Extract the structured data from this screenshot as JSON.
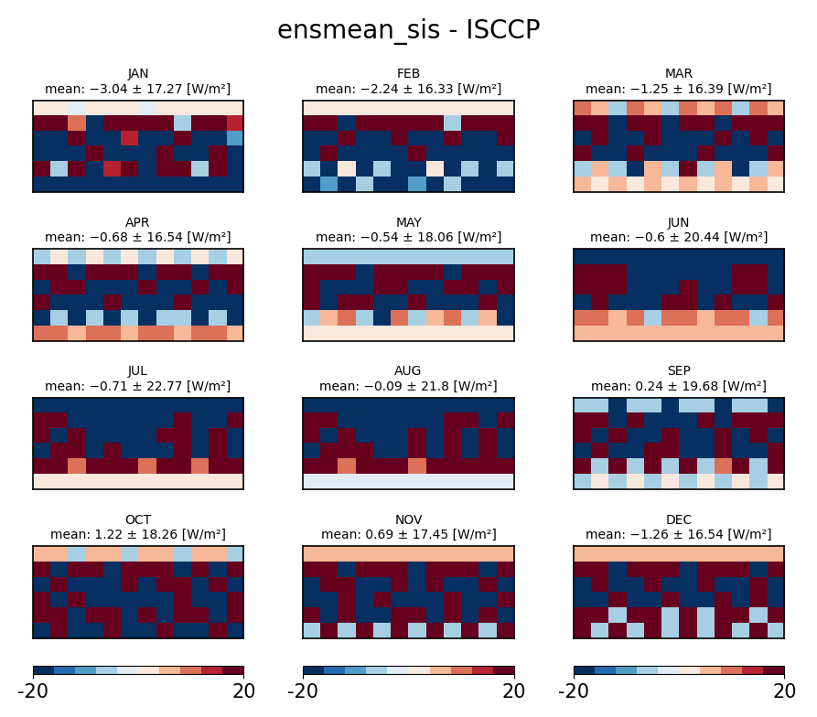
{
  "title": "ensmean_sis - ISCCP",
  "colorbar": {
    "range": [
      -20,
      20
    ],
    "ticks": [
      -20,
      20
    ],
    "bounds": [
      -20,
      -16,
      -12,
      -8,
      -4,
      0,
      4,
      8,
      12,
      16,
      20
    ]
  },
  "chart_data": [
    {
      "type": "heatmap",
      "title": "JAN",
      "subtitle": "mean: −3.04 ± 17.27 [W/m²]",
      "tick_labels": false,
      "cells": [
        [
          2,
          2,
          -2,
          2,
          2,
          2,
          -2,
          2,
          2,
          2,
          2,
          2
        ],
        [
          18,
          18,
          10,
          -18,
          18,
          18,
          18,
          18,
          -6,
          18,
          18,
          14
        ],
        [
          -18,
          -18,
          18,
          -18,
          -18,
          14,
          -18,
          -18,
          18,
          -18,
          -18,
          -10
        ],
        [
          -18,
          -18,
          -18,
          18,
          -18,
          -18,
          -18,
          18,
          -18,
          -18,
          18,
          -18
        ],
        [
          18,
          -6,
          18,
          -18,
          14,
          18,
          -18,
          18,
          18,
          -6,
          18,
          -18
        ],
        [
          -18,
          -18,
          -18,
          -18,
          -18,
          -18,
          -18,
          -18,
          -18,
          -18,
          -18,
          -18
        ]
      ]
    },
    {
      "type": "heatmap",
      "title": "FEB",
      "subtitle": "mean: −2.24 ± 16.33 [W/m²]",
      "tick_labels": false,
      "cells": [
        [
          2,
          2,
          2,
          2,
          2,
          2,
          2,
          2,
          2,
          2,
          2,
          2
        ],
        [
          18,
          18,
          -18,
          18,
          18,
          18,
          18,
          18,
          -6,
          18,
          18,
          18
        ],
        [
          -18,
          -18,
          18,
          -18,
          -18,
          18,
          -18,
          -18,
          18,
          -18,
          -18,
          18
        ],
        [
          -18,
          18,
          -18,
          -18,
          -18,
          -18,
          18,
          -18,
          -18,
          -18,
          -18,
          -18
        ],
        [
          -6,
          -18,
          2,
          -18,
          -6,
          -18,
          -18,
          2,
          -18,
          -6,
          -18,
          -6
        ],
        [
          -18,
          -10,
          -18,
          -6,
          -18,
          -18,
          -10,
          -18,
          -6,
          -18,
          -18,
          -18
        ]
      ]
    },
    {
      "type": "heatmap",
      "title": "MAR",
      "subtitle": "mean: −1.25 ± 16.39 [W/m²]",
      "tick_labels": false,
      "cells": [
        [
          10,
          6,
          -6,
          10,
          6,
          -6,
          10,
          6,
          10,
          -6,
          10,
          6
        ],
        [
          18,
          18,
          -18,
          18,
          18,
          -18,
          18,
          18,
          -18,
          18,
          18,
          18
        ],
        [
          -18,
          18,
          -18,
          -18,
          18,
          -18,
          -18,
          -18,
          18,
          -18,
          18,
          -18
        ],
        [
          18,
          -18,
          -18,
          18,
          -18,
          -18,
          -18,
          18,
          -18,
          -18,
          -18,
          18
        ],
        [
          -6,
          6,
          -6,
          -18,
          6,
          -6,
          18,
          -6,
          6,
          -18,
          -6,
          6
        ],
        [
          6,
          2,
          6,
          2,
          6,
          2,
          6,
          2,
          6,
          2,
          6,
          2
        ]
      ]
    },
    {
      "type": "heatmap",
      "title": "APR",
      "subtitle": "mean: −0.68 ± 16.54 [W/m²]",
      "tick_labels": false,
      "cells": [
        [
          -6,
          2,
          -6,
          2,
          -6,
          2,
          -6,
          2,
          -6,
          2,
          -6,
          2
        ],
        [
          18,
          18,
          -18,
          18,
          18,
          18,
          -18,
          18,
          18,
          -18,
          18,
          18
        ],
        [
          -18,
          18,
          18,
          -18,
          -18,
          -18,
          18,
          -18,
          -18,
          18,
          -18,
          18
        ],
        [
          18,
          -18,
          -18,
          -18,
          18,
          -18,
          -18,
          -18,
          18,
          -18,
          -18,
          -18
        ],
        [
          -18,
          -6,
          -18,
          -6,
          -18,
          -6,
          -18,
          -6,
          -6,
          -18,
          -6,
          -18
        ],
        [
          10,
          10,
          6,
          10,
          10,
          6,
          10,
          10,
          6,
          10,
          10,
          6
        ]
      ]
    },
    {
      "type": "heatmap",
      "title": "MAY",
      "subtitle": "mean: −0.54 ± 18.06 [W/m²]",
      "tick_labels": false,
      "cells": [
        [
          -6,
          -6,
          -6,
          -6,
          -6,
          -6,
          -6,
          -6,
          -6,
          -6,
          -6,
          -6
        ],
        [
          18,
          18,
          18,
          -18,
          18,
          18,
          18,
          18,
          -18,
          18,
          18,
          18
        ],
        [
          18,
          -18,
          -18,
          -18,
          18,
          18,
          -18,
          -18,
          18,
          18,
          -18,
          18
        ],
        [
          18,
          -18,
          18,
          18,
          -18,
          -18,
          18,
          -18,
          -18,
          -18,
          18,
          -18
        ],
        [
          -6,
          6,
          10,
          -6,
          -18,
          10,
          -6,
          6,
          10,
          -6,
          6,
          -18
        ],
        [
          2,
          2,
          2,
          2,
          2,
          2,
          2,
          2,
          2,
          2,
          2,
          2
        ]
      ]
    },
    {
      "type": "heatmap",
      "title": "JUN",
      "subtitle": "mean: −0.6 ± 20.44 [W/m²]",
      "tick_labels": false,
      "cells": [
        [
          -18,
          -18,
          -18,
          -18,
          -18,
          -18,
          -18,
          -18,
          -18,
          -18,
          -18,
          -18
        ],
        [
          18,
          18,
          18,
          -18,
          -18,
          -18,
          -18,
          -18,
          -18,
          18,
          18,
          -18
        ],
        [
          18,
          18,
          18,
          -18,
          -18,
          -18,
          18,
          -18,
          -18,
          18,
          18,
          -18
        ],
        [
          -18,
          18,
          -18,
          -18,
          -18,
          18,
          18,
          -18,
          18,
          -18,
          -18,
          18
        ],
        [
          10,
          10,
          6,
          10,
          -6,
          10,
          10,
          6,
          10,
          10,
          -6,
          10
        ],
        [
          6,
          6,
          6,
          6,
          6,
          6,
          6,
          6,
          6,
          6,
          6,
          6
        ]
      ]
    },
    {
      "type": "heatmap",
      "title": "JUL",
      "subtitle": "mean: −0.71 ± 22.77 [W/m²]",
      "tick_labels": false,
      "cells": [
        [
          -18,
          -18,
          -18,
          -18,
          -18,
          -18,
          -18,
          -18,
          -18,
          -18,
          -18,
          -18
        ],
        [
          18,
          18,
          -18,
          -18,
          -18,
          -18,
          -18,
          -18,
          18,
          -18,
          -18,
          18
        ],
        [
          18,
          -18,
          18,
          -18,
          -18,
          -18,
          -18,
          18,
          18,
          -18,
          18,
          -18
        ],
        [
          -18,
          18,
          18,
          -18,
          18,
          -18,
          -18,
          -18,
          18,
          -18,
          18,
          -18
        ],
        [
          18,
          18,
          10,
          18,
          18,
          18,
          10,
          18,
          18,
          10,
          18,
          18
        ],
        [
          2,
          2,
          2,
          2,
          2,
          2,
          2,
          2,
          2,
          2,
          2,
          2
        ]
      ]
    },
    {
      "type": "heatmap",
      "title": "AUG",
      "subtitle": "mean: −0.09 ± 21.8 [W/m²]",
      "tick_labels": false,
      "cells": [
        [
          -18,
          -18,
          -18,
          -18,
          -18,
          -18,
          -18,
          -18,
          -18,
          -18,
          -18,
          -18
        ],
        [
          18,
          18,
          -18,
          -18,
          -18,
          -18,
          -18,
          -18,
          18,
          18,
          -18,
          18
        ],
        [
          18,
          -18,
          18,
          -18,
          -18,
          -18,
          18,
          -18,
          18,
          -18,
          18,
          -18
        ],
        [
          -18,
          18,
          18,
          18,
          -18,
          -18,
          18,
          -18,
          18,
          -18,
          18,
          -18
        ],
        [
          18,
          18,
          10,
          18,
          18,
          18,
          10,
          18,
          18,
          18,
          18,
          18
        ],
        [
          -2,
          -2,
          -2,
          -2,
          -2,
          -2,
          -2,
          -2,
          -2,
          -2,
          -2,
          -2
        ]
      ]
    },
    {
      "type": "heatmap",
      "title": "SEP",
      "subtitle": "mean: 0.24 ± 19.68 [W/m²]",
      "tick_labels": false,
      "cells": [
        [
          -6,
          -6,
          -18,
          -6,
          -6,
          -18,
          -6,
          -6,
          -18,
          -6,
          -6,
          -18
        ],
        [
          18,
          18,
          -18,
          18,
          -18,
          -18,
          -18,
          18,
          -18,
          18,
          18,
          18
        ],
        [
          18,
          -18,
          18,
          -18,
          -18,
          18,
          -18,
          -18,
          18,
          -18,
          18,
          -18
        ],
        [
          -18,
          18,
          -18,
          -18,
          18,
          18,
          -18,
          -18,
          18,
          -18,
          -18,
          18
        ],
        [
          18,
          -6,
          18,
          -6,
          18,
          -6,
          18,
          -6,
          10,
          18,
          -6,
          18
        ],
        [
          -6,
          2,
          -6,
          2,
          -6,
          2,
          -6,
          2,
          -6,
          2,
          -6,
          2
        ]
      ]
    },
    {
      "type": "heatmap",
      "title": "OCT",
      "subtitle": "mean: 1.22 ± 18.26 [W/m²]",
      "tick_labels": false,
      "cells": [
        [
          6,
          6,
          -6,
          6,
          6,
          -6,
          6,
          6,
          -6,
          6,
          6,
          -6
        ],
        [
          18,
          -18,
          18,
          18,
          -18,
          18,
          18,
          18,
          -18,
          18,
          -18,
          18
        ],
        [
          -18,
          18,
          -18,
          -18,
          -18,
          18,
          -18,
          18,
          18,
          -18,
          18,
          -18
        ],
        [
          18,
          -18,
          18,
          -18,
          -18,
          -18,
          -18,
          -18,
          18,
          -18,
          -18,
          18
        ],
        [
          18,
          18,
          -18,
          18,
          18,
          -18,
          18,
          -18,
          18,
          18,
          -18,
          18
        ],
        [
          -18,
          18,
          -18,
          -18,
          18,
          -18,
          -18,
          18,
          -18,
          -18,
          18,
          -18
        ]
      ]
    },
    {
      "type": "heatmap",
      "title": "NOV",
      "subtitle": "mean: 0.69 ± 17.45 [W/m²]",
      "tick_labels": false,
      "cells": [
        [
          6,
          6,
          6,
          6,
          6,
          6,
          6,
          6,
          6,
          6,
          6,
          6
        ],
        [
          18,
          18,
          -18,
          18,
          18,
          18,
          -18,
          18,
          18,
          18,
          -18,
          18
        ],
        [
          -18,
          18,
          18,
          -18,
          -18,
          18,
          -18,
          18,
          -18,
          -18,
          18,
          -18
        ],
        [
          -18,
          -18,
          18,
          -18,
          18,
          -18,
          -18,
          -18,
          18,
          -18,
          -18,
          18
        ],
        [
          18,
          -18,
          18,
          -18,
          -18,
          18,
          18,
          -18,
          18,
          -18,
          18,
          -18
        ],
        [
          -6,
          18,
          -6,
          18,
          -6,
          18,
          -6,
          18,
          -6,
          18,
          -6,
          18
        ]
      ]
    },
    {
      "type": "heatmap",
      "title": "DEC",
      "subtitle": "mean: −1.26 ± 16.54 [W/m²]",
      "tick_labels": false,
      "cells": [
        [
          6,
          6,
          6,
          6,
          6,
          6,
          6,
          6,
          6,
          6,
          6,
          6
        ],
        [
          18,
          18,
          -18,
          18,
          18,
          18,
          -18,
          18,
          18,
          18,
          -18,
          18
        ],
        [
          -18,
          18,
          -18,
          -18,
          18,
          -18,
          -18,
          18,
          -18,
          -18,
          18,
          -18
        ],
        [
          -18,
          -18,
          18,
          -18,
          -18,
          18,
          -18,
          -18,
          18,
          -18,
          18,
          -18
        ],
        [
          18,
          18,
          -6,
          18,
          18,
          -6,
          18,
          -6,
          18,
          18,
          -6,
          18
        ],
        [
          18,
          -6,
          18,
          -6,
          18,
          -6,
          18,
          -6,
          18,
          -6,
          18,
          -6
        ]
      ]
    }
  ]
}
